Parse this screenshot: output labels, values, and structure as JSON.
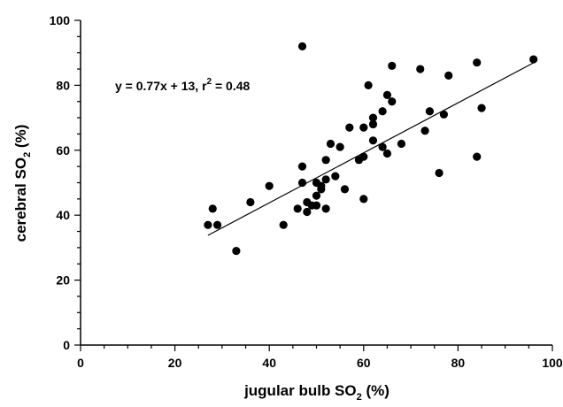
{
  "chart_data": {
    "type": "scatter",
    "title": "",
    "xlabel": {
      "prefix": "jugular bulb SO",
      "sub": "2",
      "suffix": " (%)"
    },
    "ylabel": {
      "prefix": "cerebral SO",
      "sub": "2",
      "suffix": " (%)"
    },
    "xlim": [
      0,
      100
    ],
    "ylim": [
      0,
      100
    ],
    "x_ticks": [
      "0",
      "20",
      "40",
      "60",
      "80",
      "100"
    ],
    "y_ticks": [
      "0",
      "20",
      "40",
      "60",
      "80",
      "100"
    ],
    "grid": false,
    "legend": "none",
    "annotation": {
      "main": "y = 0.77x + 13,  r",
      "sup": "2",
      "tail": " = 0.48"
    },
    "regression": {
      "slope": 0.77,
      "intercept": 13,
      "x_range": [
        27,
        96
      ]
    },
    "marker_color": "#000000",
    "points": [
      [
        27,
        37
      ],
      [
        28,
        42
      ],
      [
        29,
        37
      ],
      [
        33,
        29
      ],
      [
        36,
        44
      ],
      [
        40,
        49
      ],
      [
        43,
        37
      ],
      [
        46,
        42
      ],
      [
        47,
        92
      ],
      [
        47,
        55
      ],
      [
        47,
        50
      ],
      [
        48,
        44
      ],
      [
        48,
        41
      ],
      [
        49,
        43
      ],
      [
        50,
        50
      ],
      [
        50,
        46
      ],
      [
        50,
        43
      ],
      [
        51,
        48
      ],
      [
        51,
        49
      ],
      [
        52,
        57
      ],
      [
        52,
        51
      ],
      [
        52,
        42
      ],
      [
        53,
        62
      ],
      [
        54,
        52
      ],
      [
        55,
        61
      ],
      [
        56,
        48
      ],
      [
        57,
        67
      ],
      [
        59,
        57
      ],
      [
        60,
        67
      ],
      [
        60,
        58
      ],
      [
        60,
        45
      ],
      [
        61,
        80
      ],
      [
        62,
        68
      ],
      [
        62,
        70
      ],
      [
        62,
        63
      ],
      [
        64,
        72
      ],
      [
        64,
        61
      ],
      [
        65,
        77
      ],
      [
        65,
        59
      ],
      [
        66,
        86
      ],
      [
        66,
        75
      ],
      [
        68,
        62
      ],
      [
        72,
        85
      ],
      [
        73,
        66
      ],
      [
        74,
        72
      ],
      [
        76,
        53
      ],
      [
        77,
        71
      ],
      [
        78,
        83
      ],
      [
        84,
        87
      ],
      [
        84,
        58
      ],
      [
        85,
        73
      ],
      [
        96,
        88
      ]
    ]
  }
}
